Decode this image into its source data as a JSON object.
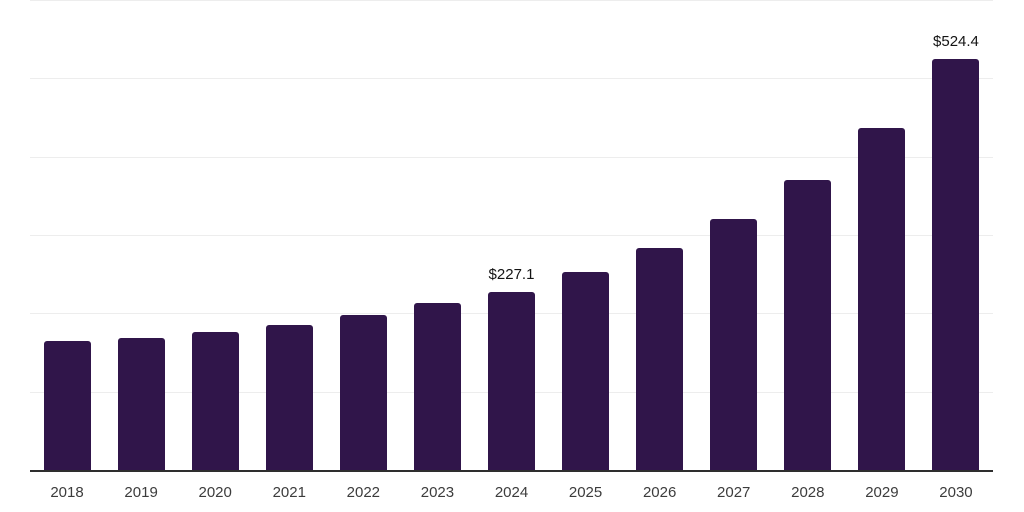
{
  "chart_data": {
    "type": "bar",
    "title": "",
    "xlabel": "",
    "ylabel": "",
    "categories": [
      "2018",
      "2019",
      "2020",
      "2021",
      "2022",
      "2023",
      "2024",
      "2025",
      "2026",
      "2027",
      "2028",
      "2029",
      "2030"
    ],
    "values": [
      165,
      168,
      176,
      185,
      198,
      213,
      227.1,
      253,
      284,
      321,
      370,
      436,
      524.4
    ],
    "data_labels": [
      null,
      null,
      null,
      null,
      null,
      null,
      "$227.1",
      null,
      null,
      null,
      null,
      null,
      "$524.4"
    ],
    "ylim": [
      0,
      600
    ],
    "gridline_step": 100,
    "grid": true,
    "legend": false,
    "notes": "values without visible labels are estimated from bar heights against gridlines"
  },
  "colors": {
    "background": "#FFFFFF",
    "bar": "#30154A",
    "axis_line": "#2E2E2E",
    "gridline": "#EDEDED",
    "tick_label": "#3C3C3C",
    "data_label": "#141414"
  }
}
